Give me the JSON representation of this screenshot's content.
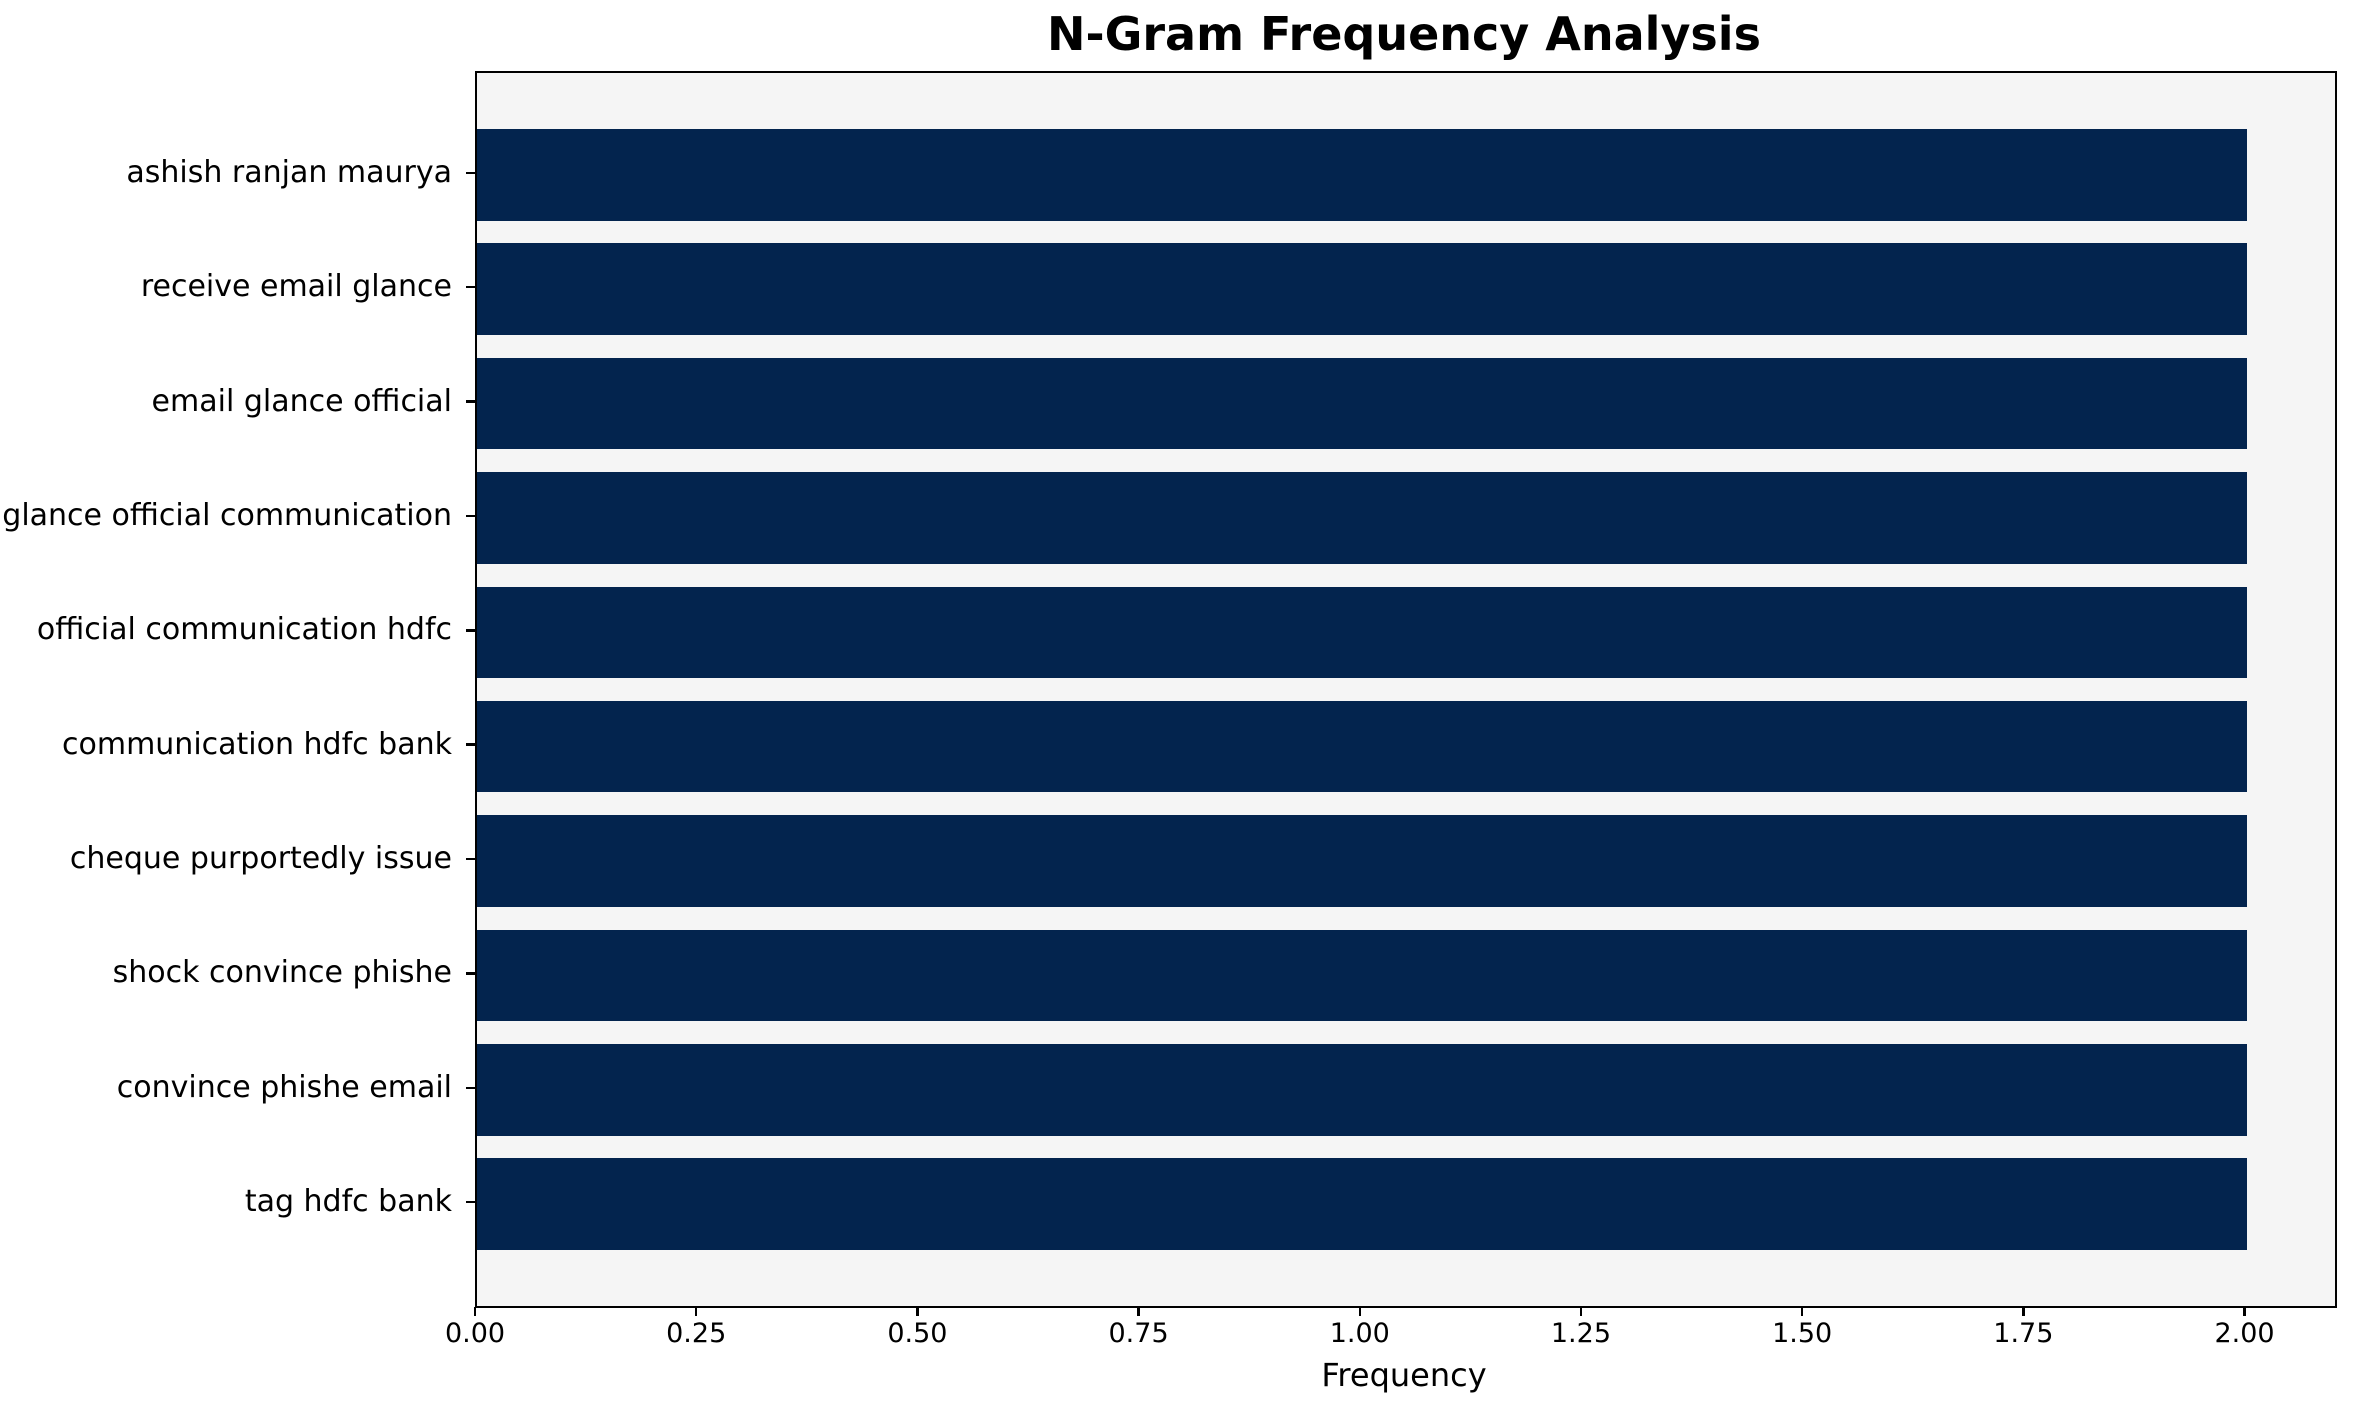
{
  "figure": {
    "title": "N-Gram Frequency Analysis",
    "xlabel": "Frequency"
  },
  "chart_data": {
    "type": "bar",
    "orientation": "horizontal",
    "title": "N-Gram Frequency Analysis",
    "xlabel": "Frequency",
    "ylabel": "",
    "categories": [
      "ashish ranjan maurya",
      "receive email glance",
      "email glance official",
      "glance official communication",
      "official communication hdfc",
      "communication hdfc bank",
      "cheque purportedly issue",
      "shock convince phishe",
      "convince phishe email",
      "tag hdfc bank"
    ],
    "values": [
      2,
      2,
      2,
      2,
      2,
      2,
      2,
      2,
      2,
      2
    ],
    "xlim": [
      0,
      2.1
    ],
    "x_ticks": [
      0,
      0.25,
      0.5,
      0.75,
      1.0,
      1.25,
      1.5,
      1.75,
      2.0
    ],
    "x_tick_labels": [
      "0.00",
      "0.25",
      "0.50",
      "0.75",
      "1.00",
      "1.25",
      "1.50",
      "1.75",
      "2.00"
    ],
    "bar_height_fraction": 0.8,
    "grid": false,
    "legend": null,
    "colors": {
      "bar": "#03244e",
      "plot_background": "#f5f5f5",
      "figure_background": "#ffffff",
      "spine": "#000000",
      "text": "#000000"
    }
  }
}
